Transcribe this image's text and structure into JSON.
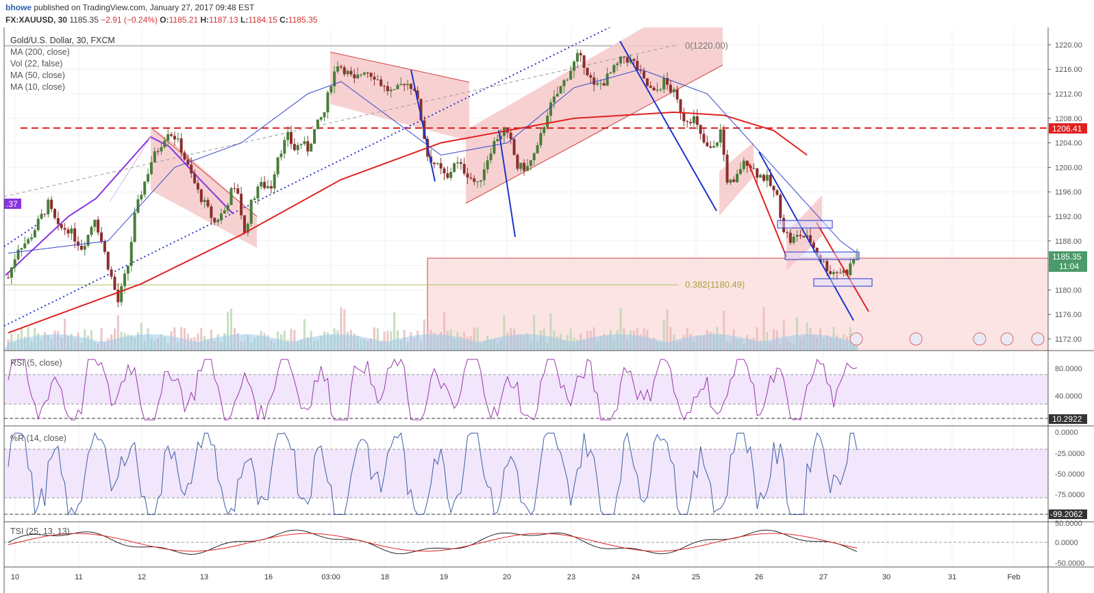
{
  "header": {
    "author": "bhowe",
    "published": "published on TradingView.com, January 27, 2017 09:48 EST",
    "symbol": "FX:XAUUSD, 30",
    "last": "1185.35",
    "change": "−2.91 (−0.24%)",
    "o_label": "O:",
    "o": "1185.21",
    "h_label": "H:",
    "h": "1187.13",
    "l_label": "L:",
    "l": "1184.15",
    "c_label": "C:",
    "c": "1185.35"
  },
  "legend": {
    "title": "Gold/U.S. Dollar, 30, FXCM",
    "ma200": "MA (200, close)",
    "vol": "Vol (22, false)",
    "ma50": "MA (50, close)",
    "ma10": "MA (10, close)"
  },
  "colors": {
    "up": "#4a7d3a",
    "down": "#8b2e2e",
    "ma200": "#e02020",
    "ma50": "#3344cc",
    "ma10": "#6699dd",
    "rsi": "#9933aa",
    "wr": "#3b5aa5",
    "tsi": "#222222",
    "tsi_signal": "#e02020",
    "channel": "#f6c9c9",
    "blue_line": "#1a33cc"
  },
  "annotations": {
    "fib0": "0(1220.00)",
    "fib382": "0.382(1180.49)",
    "left_tag": ".37",
    "price_tag": "1185.35",
    "time_tag": "11:04",
    "level_tag": "1206.41"
  },
  "chart_data": [
    {
      "type": "candlestick",
      "title": "Gold/U.S. Dollar, 30, FXCM",
      "y_ticks": [
        "1172.00",
        "1176.00",
        "1180.00",
        "1184.00",
        "1188.00",
        "1192.00",
        "1196.00",
        "1200.00",
        "1204.00",
        "1208.00",
        "1212.00",
        "1216.00",
        "1220.00"
      ],
      "ylim": [
        1170,
        1222
      ],
      "x_ticks": [
        "10",
        "11",
        "12",
        "13",
        "16",
        "03:00",
        "18",
        "19",
        "20",
        "23",
        "24",
        "25",
        "26",
        "27",
        "30",
        "31",
        "Feb"
      ],
      "horizontal_level": 1206.41,
      "close_level": 1185.35,
      "fib_levels": [
        {
          "label": "0(1220.00)",
          "value": 1220.0
        },
        {
          "label": "0.382(1180.49)",
          "value": 1180.49
        }
      ],
      "path_points": [
        [
          0,
          1182
        ],
        [
          3,
          1187
        ],
        [
          6,
          1188
        ],
        [
          9,
          1191
        ],
        [
          12,
          1194
        ],
        [
          15,
          1190
        ],
        [
          18,
          1190
        ],
        [
          22,
          1187
        ],
        [
          24,
          1189
        ],
        [
          26,
          1192
        ],
        [
          28,
          1188
        ],
        [
          31,
          1182
        ],
        [
          33,
          1178
        ],
        [
          36,
          1184
        ],
        [
          38,
          1192
        ],
        [
          40,
          1196
        ],
        [
          43,
          1201
        ],
        [
          46,
          1204
        ],
        [
          48,
          1206
        ],
        [
          50,
          1205
        ],
        [
          52,
          1203
        ],
        [
          54,
          1200
        ],
        [
          57,
          1196
        ],
        [
          60,
          1193
        ],
        [
          62,
          1191
        ],
        [
          65,
          1193
        ],
        [
          67,
          1196
        ],
        [
          69,
          1196
        ],
        [
          71,
          1189
        ],
        [
          73,
          1194
        ],
        [
          75,
          1197
        ],
        [
          77,
          1197
        ],
        [
          79,
          1197
        ],
        [
          81,
          1202
        ],
        [
          84,
          1205
        ],
        [
          86,
          1203
        ],
        [
          88,
          1204
        ],
        [
          90,
          1203
        ],
        [
          92,
          1206
        ],
        [
          95,
          1209
        ],
        [
          97,
          1214
        ],
        [
          99,
          1217
        ],
        [
          101,
          1216
        ],
        [
          104,
          1214
        ],
        [
          107,
          1216
        ],
        [
          110,
          1215
        ],
        [
          113,
          1213
        ],
        [
          116,
          1212
        ],
        [
          119,
          1214
        ],
        [
          122,
          1213
        ],
        [
          124,
          1208
        ],
        [
          126,
          1202
        ],
        [
          129,
          1200
        ],
        [
          132,
          1198
        ],
        [
          134,
          1201
        ],
        [
          136,
          1200
        ],
        [
          138,
          1199
        ],
        [
          141,
          1197
        ],
        [
          143,
          1200
        ],
        [
          145,
          1203
        ],
        [
          147,
          1205
        ],
        [
          149,
          1206
        ],
        [
          151,
          1204
        ],
        [
          153,
          1200
        ],
        [
          156,
          1200
        ],
        [
          159,
          1203
        ],
        [
          162,
          1209
        ],
        [
          165,
          1212
        ],
        [
          168,
          1215
        ],
        [
          171,
          1218
        ],
        [
          173,
          1217
        ],
        [
          176,
          1213
        ],
        [
          179,
          1214
        ],
        [
          182,
          1216
        ],
        [
          185,
          1218
        ],
        [
          188,
          1217
        ],
        [
          191,
          1214
        ],
        [
          194,
          1212
        ],
        [
          197,
          1214
        ],
        [
          200,
          1212
        ],
        [
          203,
          1208
        ],
        [
          206,
          1208
        ],
        [
          208,
          1205
        ],
        [
          210,
          1203
        ],
        [
          212,
          1203
        ],
        [
          214,
          1206
        ],
        [
          216,
          1198
        ],
        [
          218,
          1197
        ],
        [
          220,
          1200
        ],
        [
          222,
          1201
        ],
        [
          225,
          1199
        ],
        [
          228,
          1198
        ],
        [
          231,
          1195
        ],
        [
          233,
          1190
        ],
        [
          235,
          1188
        ],
        [
          238,
          1189
        ],
        [
          241,
          1188
        ],
        [
          244,
          1185
        ],
        [
          247,
          1183
        ],
        [
          250,
          1183
        ],
        [
          252,
          1183
        ],
        [
          255,
          1186
        ]
      ],
      "ma200_points": [
        [
          0,
          1173
        ],
        [
          40,
          1181
        ],
        [
          70,
          1189
        ],
        [
          100,
          1198
        ],
        [
          130,
          1204
        ],
        [
          150,
          1206
        ],
        [
          170,
          1208
        ],
        [
          200,
          1209
        ],
        [
          215,
          1208.5
        ],
        [
          230,
          1206
        ],
        [
          240,
          1202
        ]
      ],
      "ma50_points": [
        [
          0,
          1186
        ],
        [
          30,
          1188
        ],
        [
          50,
          1200
        ],
        [
          70,
          1204
        ],
        [
          90,
          1212
        ],
        [
          100,
          1214
        ],
        [
          110,
          1210
        ],
        [
          130,
          1202
        ],
        [
          150,
          1204
        ],
        [
          170,
          1213
        ],
        [
          190,
          1216
        ],
        [
          210,
          1212
        ],
        [
          230,
          1200
        ],
        [
          250,
          1188
        ],
        [
          255,
          1186
        ]
      ]
    },
    {
      "type": "line",
      "title": "RSI (5, close)",
      "y_ticks": [
        "40.0000",
        "80.0000"
      ],
      "ylim": [
        0,
        100
      ],
      "band": [
        30,
        70
      ],
      "last_value_label": "10.2922",
      "last_value": 10.2922
    },
    {
      "type": "line",
      "title": "%R (14, close)",
      "y_ticks": [
        "0.0000",
        "-25.0000",
        "-50.0000",
        "-75.0000"
      ],
      "ylim": [
        -100,
        0
      ],
      "band": [
        -80,
        -20
      ],
      "last_value_label": "-99.2062",
      "last_value": -99.2062
    },
    {
      "type": "line",
      "title": "TSI (25, 13, 13)",
      "y_ticks": [
        "50.0000",
        "0.0000",
        "-50.0000"
      ],
      "ylim": [
        -60,
        60
      ],
      "zero_line": 0
    }
  ]
}
